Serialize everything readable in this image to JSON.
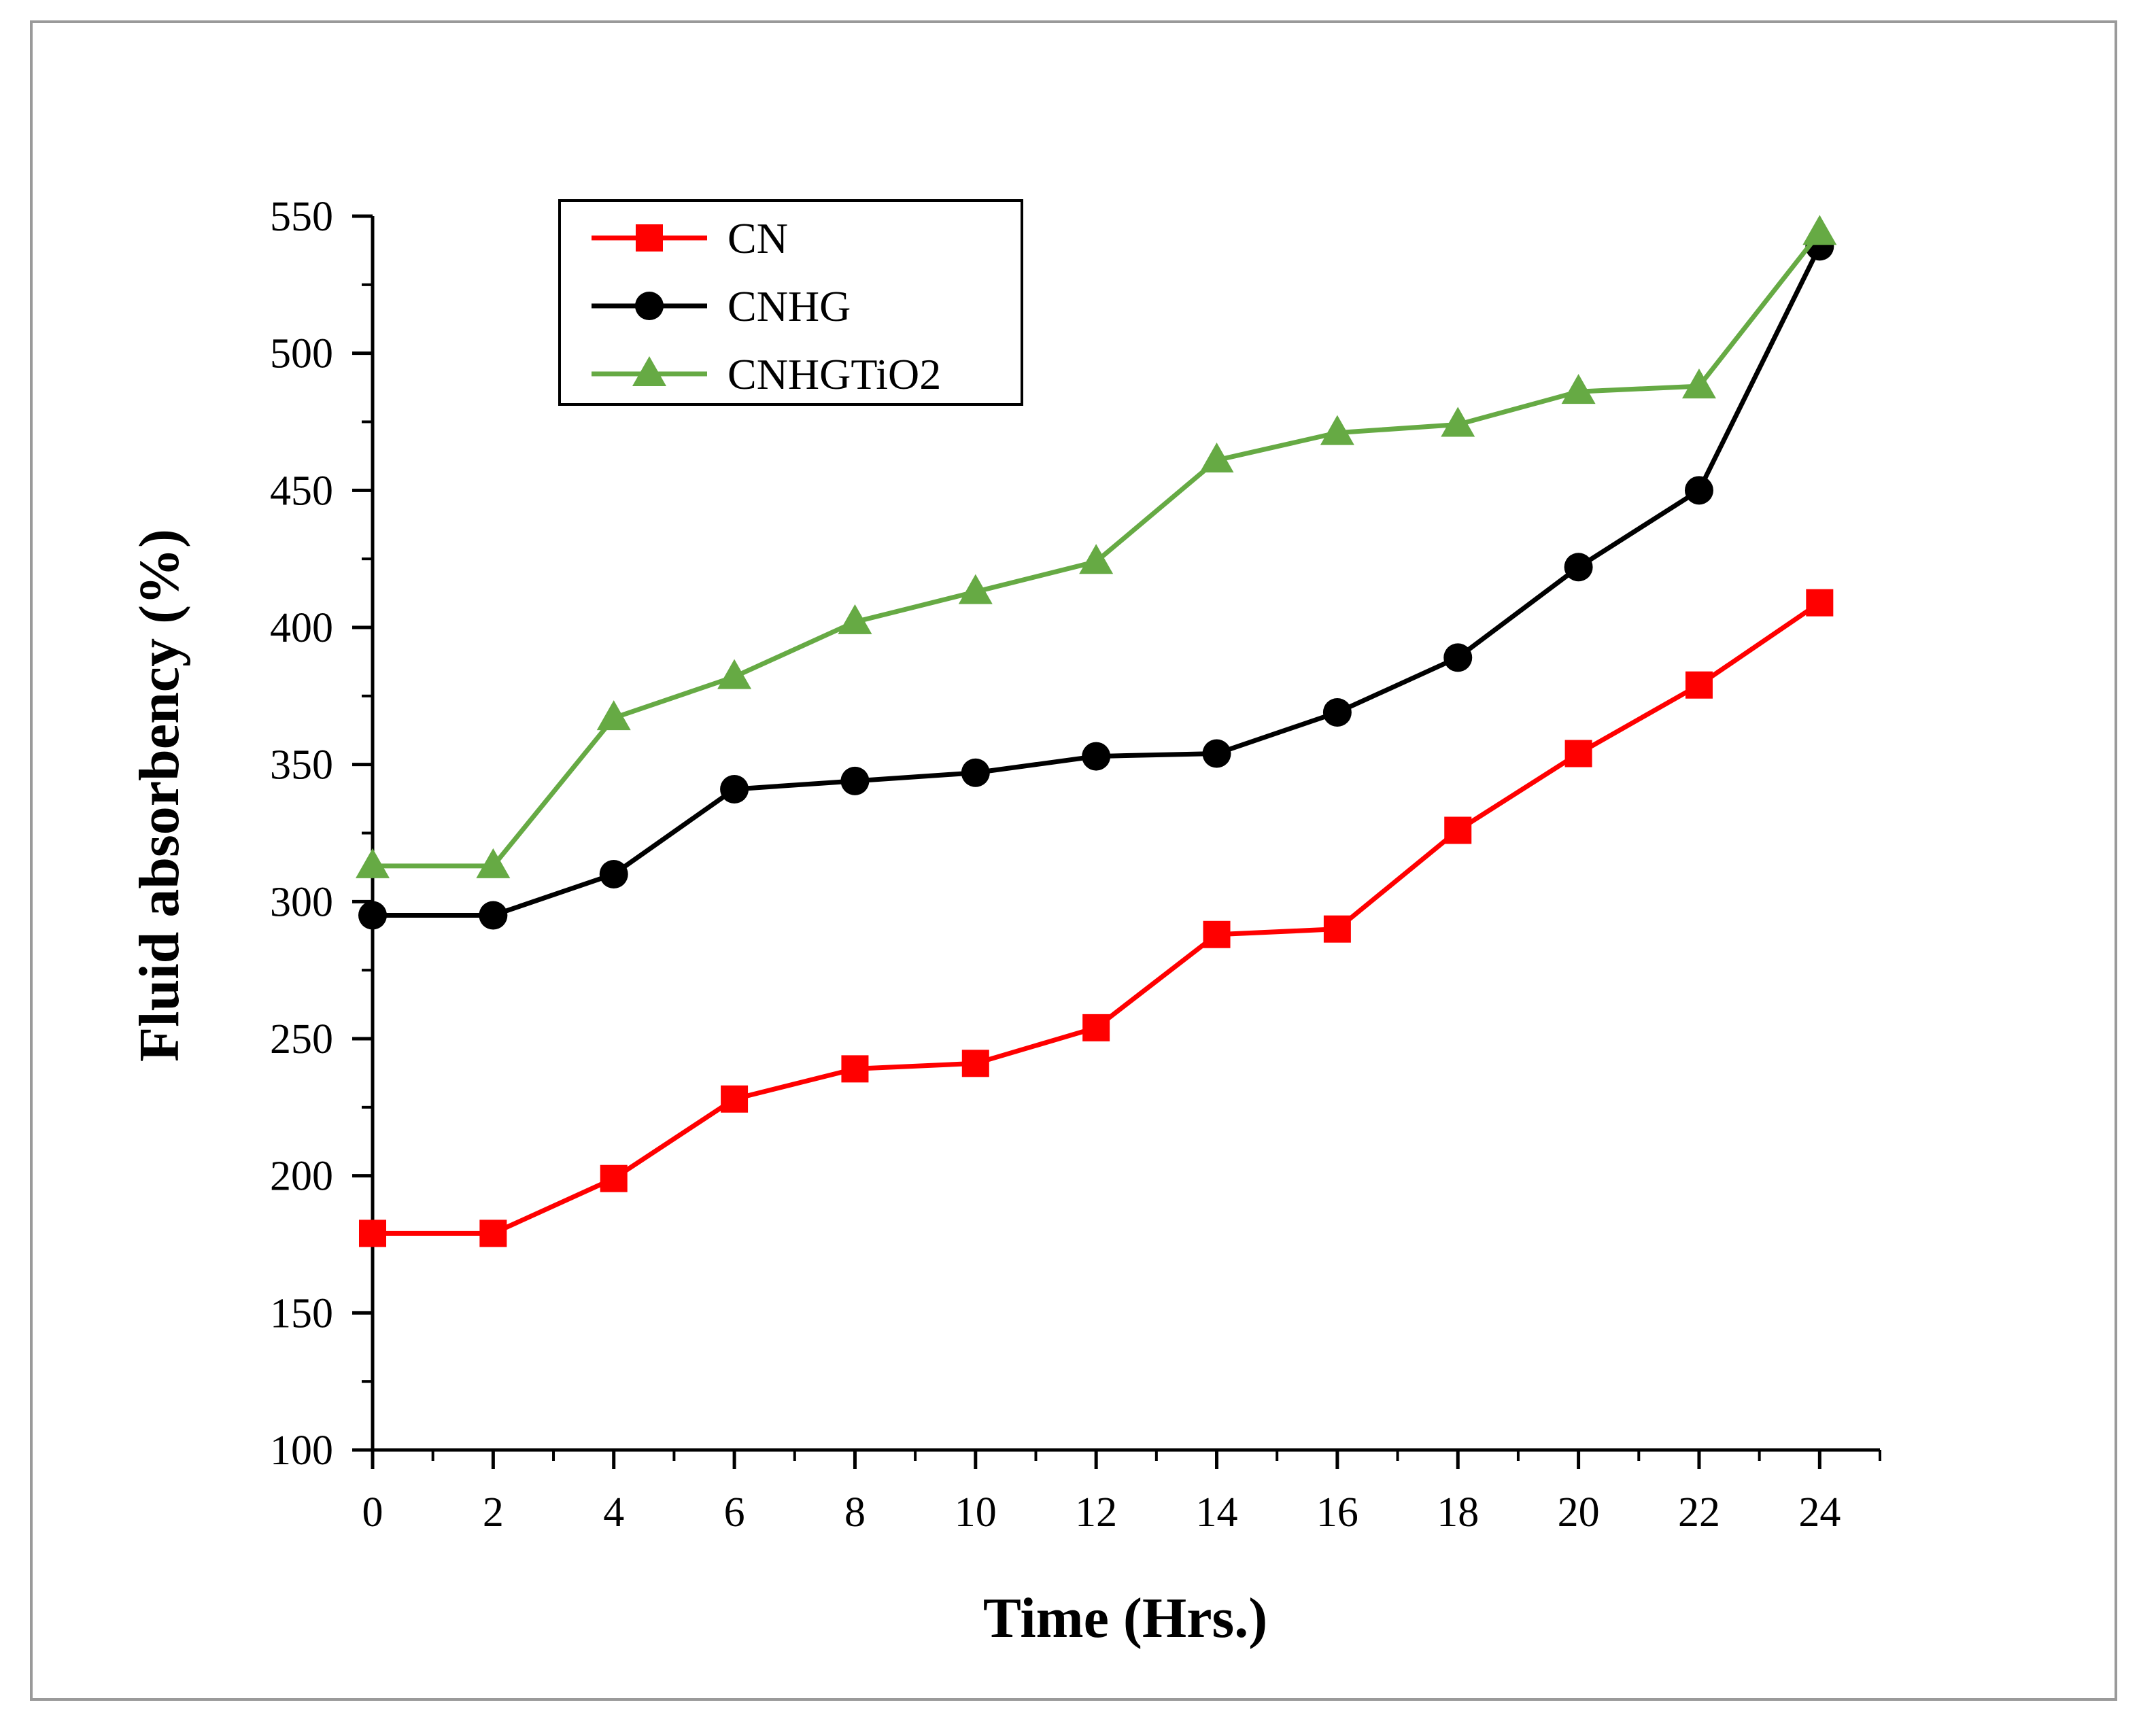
{
  "chart_data": {
    "type": "line",
    "title": "",
    "xlabel": "Time (Hrs.)",
    "ylabel": "Fluid absorbency (%)",
    "x": [
      0,
      2,
      4,
      6,
      8,
      10,
      12,
      14,
      16,
      18,
      20,
      22,
      24
    ],
    "xlim": [
      0,
      25
    ],
    "ylim": [
      100,
      550
    ],
    "xticks": [
      0,
      2,
      4,
      6,
      8,
      10,
      12,
      14,
      16,
      18,
      20,
      22,
      24
    ],
    "yticks": [
      100,
      150,
      200,
      250,
      300,
      350,
      400,
      450,
      500,
      550
    ],
    "xtick_labels": [
      "0",
      "2",
      "4",
      "6",
      "8",
      "10",
      "12",
      "14",
      "16",
      "18",
      "20",
      "22",
      "24"
    ],
    "ytick_labels": [
      "100",
      "150",
      "200",
      "250",
      "300",
      "350",
      "400",
      "450",
      "500",
      "550"
    ],
    "legend_position": "top-left",
    "grid": false,
    "series": [
      {
        "name": "CN",
        "color": "#ff0000",
        "marker": "square",
        "values": [
          179,
          179,
          199,
          228,
          239,
          241,
          254,
          288,
          290,
          326,
          354,
          379,
          409
        ]
      },
      {
        "name": "CNHG",
        "color": "#000000",
        "marker": "circle",
        "values": [
          295,
          295,
          310,
          341,
          344,
          347,
          353,
          354,
          369,
          389,
          422,
          450,
          539
        ]
      },
      {
        "name": "CNHGTiO2",
        "color": "#66aa44",
        "marker": "triangle",
        "values": [
          313,
          313,
          367,
          382,
          402,
          413,
          424,
          461,
          471,
          474,
          486,
          488,
          544
        ]
      }
    ]
  }
}
